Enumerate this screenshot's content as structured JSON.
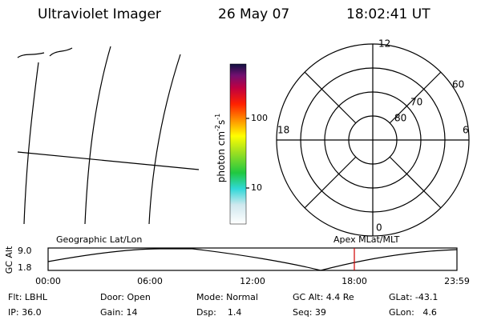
{
  "header": {
    "title": "Ultraviolet Imager",
    "date": "26 May 07",
    "time": "18:02:41 UT"
  },
  "colorbar": {
    "label": "photon cm",
    "exp1": "-2",
    "unit2": "s",
    "exp2": "-1",
    "ticks": [
      "100",
      "10"
    ]
  },
  "polar": {
    "mlt": [
      "12",
      "6",
      "18",
      "0"
    ],
    "mlat": [
      "60",
      "70",
      "80"
    ]
  },
  "alt_plot": {
    "axis_label": "GC Alt",
    "y_labels": [
      "9.0",
      "1.8"
    ],
    "left_title": "Geographic Lat/Lon",
    "right_title": "Apex MLat/MLT",
    "x_labels": [
      "00:00",
      "06:00",
      "12:00",
      "18:00",
      "23:59"
    ]
  },
  "status": [
    [
      "Flt: LBHL",
      "Door: Open",
      "Mode: Normal",
      "GC Alt: 4.4 Re",
      "GLat: -43.1"
    ],
    [
      "IP: 36.0",
      "Gain: 14",
      "Dsp:    1.4",
      "Seq: 39",
      "GLon:   4.6"
    ]
  ]
}
